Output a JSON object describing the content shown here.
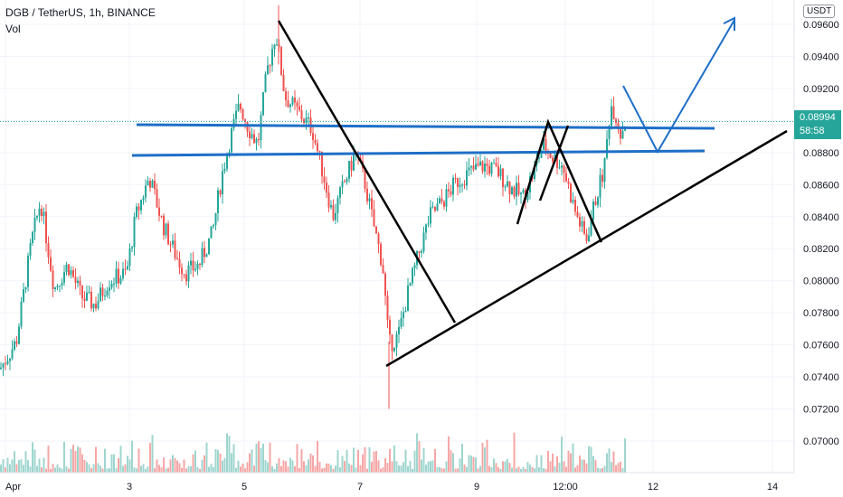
{
  "header": {
    "title": "DGB / TetherUS, 1h, BINANCE",
    "volume_label": "Vol",
    "currency_button": "USDT"
  },
  "price_tag": {
    "price": "0.08994",
    "countdown": "58:58",
    "color": "#26a69a"
  },
  "colors": {
    "up": "#26a69a",
    "down": "#ef5350",
    "vol_up": "#9fd6cf",
    "vol_down": "#f5a7a6",
    "trend_blue": "#1e6fc7",
    "trend_black": "#000000",
    "grid": "#f0f3fa"
  },
  "chart_data": {
    "type": "candlestick",
    "title": "DGB / TetherUS, 1h, BINANCE",
    "y_axis_ticks": [
      "0.09600",
      "0.09400",
      "0.09200",
      "0.09000",
      "0.08800",
      "0.08600",
      "0.08400",
      "0.08200",
      "0.08000",
      "0.07800",
      "0.07600",
      "0.07400",
      "0.07200",
      "0.07000"
    ],
    "x_axis_ticks": [
      "Apr",
      "3",
      "5",
      "7",
      "9",
      "12:00",
      "12",
      "14"
    ],
    "ylim": [
      0.0685,
      0.0973
    ],
    "last_price": 0.08994,
    "high_price_approx": 0.0972,
    "low_price_approx": 0.072,
    "grid": true,
    "annotations": {
      "horizontal_support_lines": [
        0.0879,
        0.0895
      ],
      "ascending_trendline": {
        "from": 0.0747,
        "to": 0.0892
      },
      "descending_line_from_high": {
        "from": 0.0972,
        "to": 0.0778
      },
      "projected_path": [
        0.092,
        0.0879,
        0.0967
      ]
    }
  }
}
